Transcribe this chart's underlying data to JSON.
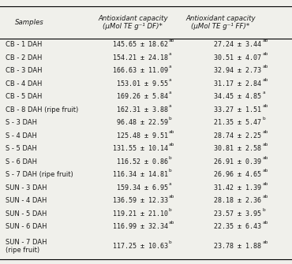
{
  "col0_header": "Samples",
  "col1_header": "Antioxidant capacity\n(μMol TE g⁻¹ DF)*",
  "col2_header": "Antioxidant capacity\n(μMol TE g⁻¹ FF)*",
  "rows": [
    [
      "CB - 1 DAH",
      "145.65 ± 18.62",
      "ab",
      "27.24 ± 3.44",
      "ab"
    ],
    [
      "CB - 2 DAH",
      "154.21 ± 24.18",
      "a",
      "30.51 ± 4.07",
      "ab"
    ],
    [
      "CB - 3 DAH",
      "166.63 ± 11.09",
      "a",
      "32.94 ± 2.73",
      "ab"
    ],
    [
      "CB - 4 DAH",
      "153.01 ± 9.55",
      "a",
      "31.17 ± 2.84",
      "ab"
    ],
    [
      "CB - 5 DAH",
      "169.26 ± 5.84",
      "a",
      "34.45 ± 4.85",
      "a"
    ],
    [
      "CB - 8 DAH (ripe fruit)",
      "162.31 ± 3.88",
      "a",
      "33.27 ± 1.51",
      "ab"
    ],
    [
      "S - 3 DAH",
      " 96.48 ± 22.59",
      "b",
      "21.35 ± 5.47",
      "b"
    ],
    [
      "S - 4 DAH",
      "125.48 ± 9.51",
      "ab",
      "28.74 ± 2.25",
      "ab"
    ],
    [
      "S - 5 DAH",
      "131.55 ± 10.14",
      "ab",
      "30.81 ± 2.58",
      "ab"
    ],
    [
      "S - 6 DAH",
      "116.52 ± 0.86",
      "b",
      "26.91 ± 0.39",
      "ab"
    ],
    [
      "S - 7 DAH (ripe fruit)",
      "116.34 ± 14.81",
      "b",
      "26.96 ± 4.65",
      "ab"
    ],
    [
      "SUN - 3 DAH",
      "159.34 ± 6.95",
      "a",
      "31.42 ± 1.39",
      "ab"
    ],
    [
      "SUN - 4 DAH",
      "136.59 ± 12.33",
      "ab",
      "28.18 ± 2.36",
      "ab"
    ],
    [
      "SUN - 5 DAH",
      "119.21 ± 21.10",
      "b",
      "23.57 ± 3.95",
      "b"
    ],
    [
      "SUN - 6 DAH",
      "116.99 ± 32.34",
      "ab",
      "22.35 ± 6.43",
      "ab"
    ],
    [
      "SUN - 7 DAH\n(ripe fruit)",
      "117.25 ± 10.63",
      "b",
      "23.78 ± 1.88",
      "ab"
    ]
  ],
  "bg_color": "#f0f0eb",
  "text_color": "#1a1a1a",
  "font_size": 6.0,
  "header_font_size": 6.2
}
